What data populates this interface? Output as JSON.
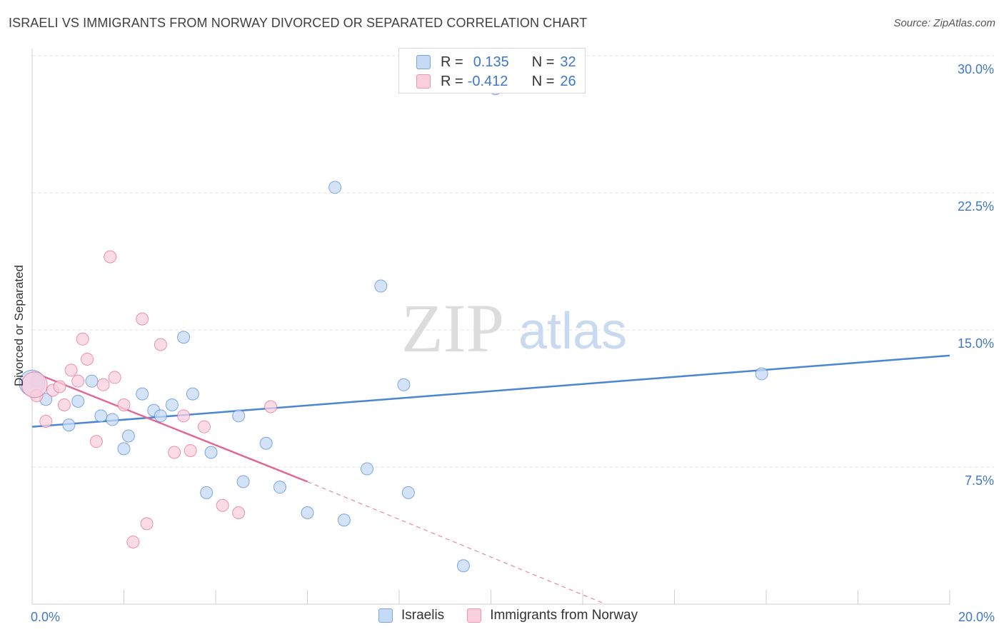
{
  "title": "ISRAELI VS IMMIGRANTS FROM NORWAY DIVORCED OR SEPARATED CORRELATION CHART",
  "source": "Source: ZipAtlas.com",
  "watermark": {
    "zip": "ZIP",
    "atlas": "atlas"
  },
  "legend": {
    "rows": [
      {
        "r_label": "R =",
        "r_value": "0.135",
        "n_label": "N =",
        "n_value": "32",
        "color": "#a9c8ef",
        "border": "#7aa6de"
      },
      {
        "r_label": "R =",
        "r_value": "-0.412",
        "n_label": "N =",
        "n_value": "26",
        "color": "#f7bfd1",
        "border": "#e897b1"
      }
    ]
  },
  "bottom_legend": [
    "Israelis",
    "Immigrants from Norway"
  ],
  "chart_data": {
    "type": "scatter",
    "xlabel": "",
    "ylabel": "Divorced or Separated",
    "xlim": [
      0,
      20
    ],
    "ylim": [
      0,
      30
    ],
    "x_tick_labels": [
      "0.0%",
      "20.0%"
    ],
    "y_ticks": [
      7.5,
      15.0,
      22.5,
      30.0
    ],
    "y_tick_labels": [
      "7.5%",
      "15.0%",
      "22.5%",
      "30.0%"
    ],
    "grid": true,
    "legend_position": "top-center",
    "series": [
      {
        "name": "Israelis",
        "color": "#4a86d4",
        "fill": "#c5daf5",
        "points": [
          [
            0.1,
            12.2
          ],
          [
            0.3,
            11.2
          ],
          [
            1.0,
            11.1
          ],
          [
            0.8,
            9.8
          ],
          [
            1.3,
            12.2
          ],
          [
            1.5,
            10.3
          ],
          [
            1.75,
            10.1
          ],
          [
            2.0,
            8.5
          ],
          [
            2.1,
            9.2
          ],
          [
            2.4,
            11.5
          ],
          [
            2.65,
            10.6
          ],
          [
            2.8,
            10.3
          ],
          [
            3.05,
            10.9
          ],
          [
            3.3,
            14.6
          ],
          [
            3.5,
            11.5
          ],
          [
            3.9,
            8.3
          ],
          [
            3.8,
            6.1
          ],
          [
            4.5,
            10.3
          ],
          [
            4.6,
            6.7
          ],
          [
            5.1,
            8.8
          ],
          [
            5.4,
            6.4
          ],
          [
            6.0,
            5.0
          ],
          [
            6.6,
            22.8
          ],
          [
            6.8,
            4.6
          ],
          [
            7.3,
            7.4
          ],
          [
            7.6,
            17.4
          ],
          [
            8.1,
            12.0
          ],
          [
            8.2,
            6.1
          ],
          [
            9.4,
            2.1
          ],
          [
            10.1,
            28.2
          ],
          [
            15.9,
            12.6
          ],
          [
            0.0,
            12.1
          ]
        ],
        "trend": {
          "x": [
            0,
            20
          ],
          "y": [
            9.7,
            13.6
          ],
          "style": "solid"
        }
      },
      {
        "name": "Immigrants from Norway",
        "color": "#e06a94",
        "fill": "#f9cfdd",
        "points": [
          [
            0.1,
            11.4
          ],
          [
            0.3,
            10.0
          ],
          [
            0.45,
            11.7
          ],
          [
            0.6,
            11.9
          ],
          [
            0.7,
            10.9
          ],
          [
            0.85,
            12.8
          ],
          [
            1.0,
            12.2
          ],
          [
            1.1,
            14.5
          ],
          [
            1.2,
            13.4
          ],
          [
            1.4,
            8.9
          ],
          [
            1.55,
            12.0
          ],
          [
            1.7,
            19.0
          ],
          [
            1.8,
            12.4
          ],
          [
            2.0,
            10.9
          ],
          [
            2.2,
            3.4
          ],
          [
            2.4,
            15.6
          ],
          [
            2.5,
            4.4
          ],
          [
            2.8,
            14.2
          ],
          [
            3.1,
            8.3
          ],
          [
            3.3,
            10.3
          ],
          [
            3.45,
            8.4
          ],
          [
            3.75,
            9.7
          ],
          [
            4.15,
            5.4
          ],
          [
            4.5,
            5.0
          ],
          [
            5.2,
            10.8
          ],
          [
            0.05,
            12.0
          ]
        ],
        "trend": {
          "x": [
            0,
            6.0
          ],
          "y": [
            12.7,
            6.7
          ],
          "style": "solid"
        },
        "trend_extension": {
          "x": [
            6.0,
            12.5
          ],
          "y": [
            6.7,
            0.0
          ],
          "style": "dashed"
        }
      }
    ]
  }
}
